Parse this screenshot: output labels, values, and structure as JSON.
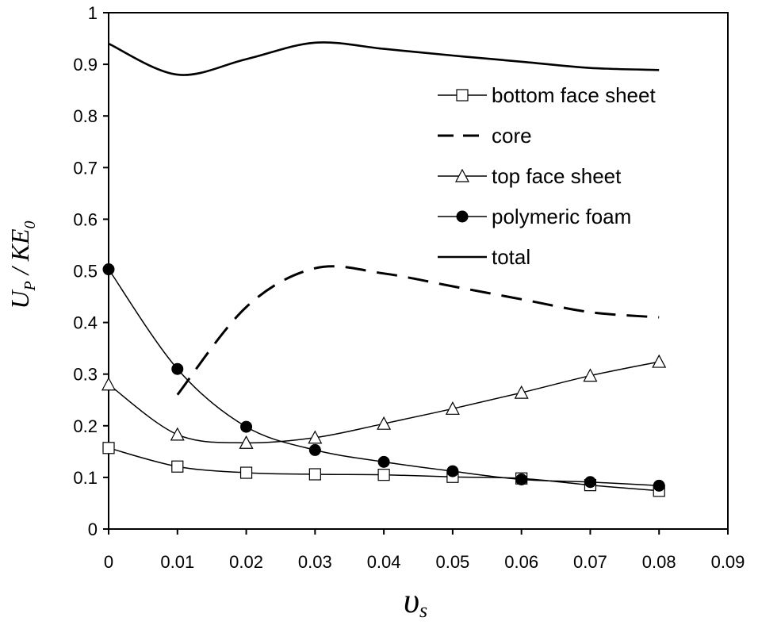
{
  "chart_data": {
    "type": "line",
    "title": "",
    "xlabel": {
      "main": "υ",
      "sub": "s"
    },
    "ylabel": {
      "part1": "U",
      "sub1": "P",
      "part2": " / KE",
      "sub2": "0"
    },
    "xlim": [
      0,
      0.09
    ],
    "ylim": [
      0,
      1
    ],
    "xticks": [
      "0",
      "0.01",
      "0.02",
      "0.03",
      "0.04",
      "0.05",
      "0.06",
      "0.07",
      "0.08",
      "0.09"
    ],
    "yticks": [
      "0",
      "0.1",
      "0.2",
      "0.3",
      "0.4",
      "0.5",
      "0.6",
      "0.7",
      "0.8",
      "0.9",
      "1"
    ],
    "grid": false,
    "legend_position": "right",
    "series": [
      {
        "name": "bottom face sheet",
        "line": "solid",
        "marker": "square-open",
        "x": [
          0,
          0.01,
          0.02,
          0.03,
          0.04,
          0.05,
          0.06,
          0.07,
          0.08
        ],
        "y": [
          0.157,
          0.121,
          0.109,
          0.106,
          0.105,
          0.101,
          0.098,
          0.085,
          0.074
        ]
      },
      {
        "name": "core",
        "line": "dashed",
        "marker": "none",
        "x": [
          0.01,
          0.02,
          0.03,
          0.04,
          0.05,
          0.06,
          0.07,
          0.08
        ],
        "y": [
          0.26,
          0.43,
          0.505,
          0.495,
          0.47,
          0.445,
          0.42,
          0.41
        ]
      },
      {
        "name": "top face sheet",
        "line": "solid",
        "marker": "triangle-open",
        "x": [
          0,
          0.01,
          0.02,
          0.03,
          0.04,
          0.05,
          0.06,
          0.07,
          0.08
        ],
        "y": [
          0.28,
          0.183,
          0.167,
          0.177,
          0.204,
          0.233,
          0.264,
          0.297,
          0.324
        ]
      },
      {
        "name": "polymeric foam",
        "line": "solid",
        "marker": "circle-filled",
        "x": [
          0,
          0.01,
          0.02,
          0.03,
          0.04,
          0.05,
          0.06,
          0.07,
          0.08
        ],
        "y": [
          0.503,
          0.31,
          0.198,
          0.153,
          0.13,
          0.112,
          0.096,
          0.091,
          0.084
        ]
      },
      {
        "name": "total",
        "line": "solid",
        "marker": "none",
        "x": [
          0,
          0.01,
          0.02,
          0.03,
          0.04,
          0.05,
          0.06,
          0.07,
          0.08
        ],
        "y": [
          0.94,
          0.88,
          0.91,
          0.942,
          0.93,
          0.917,
          0.905,
          0.893,
          0.889
        ]
      }
    ]
  }
}
